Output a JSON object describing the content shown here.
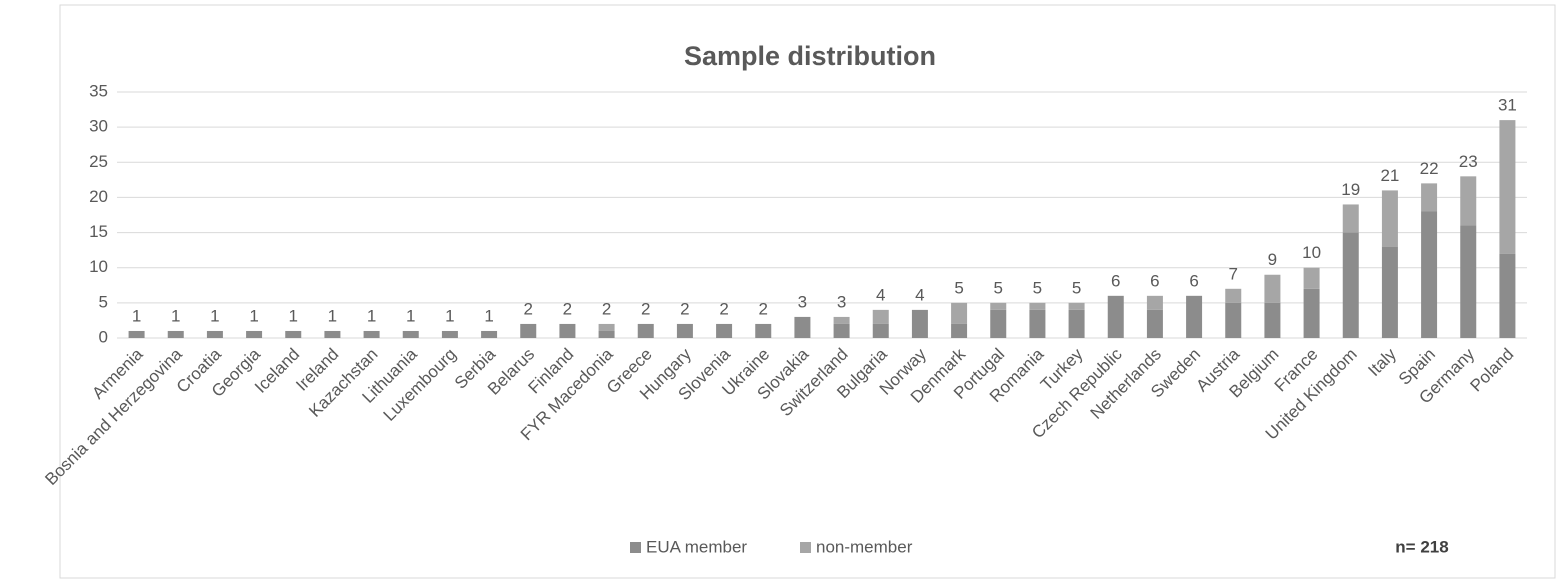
{
  "chart_data": {
    "type": "stacked_bar",
    "title": "Sample distribution",
    "annotation": "n= 218",
    "categories": [
      "Armenia",
      "Bosnia and Herzegovina",
      "Croatia",
      "Georgia",
      "Iceland",
      "Ireland",
      "Kazachstan",
      "Lithuania",
      "Luxembourg",
      "Serbia",
      "Belarus",
      "Finland",
      "FYR Macedonia",
      "Greece",
      "Hungary",
      "Slovenia",
      "Ukraine",
      "Slovakia",
      "Switzerland",
      "Bulgaria",
      "Norway",
      "Denmark",
      "Portugal",
      "Romania",
      "Turkey",
      "Czech Republic",
      "Netherlands",
      "Sweden",
      "Austria",
      "Belgium",
      "France",
      "United Kingdom",
      "Italy",
      "Spain",
      "Germany",
      "Poland"
    ],
    "series": [
      {
        "name": "EUA member",
        "color": "#8c8c8c",
        "values": [
          1,
          1,
          1,
          1,
          1,
          1,
          1,
          1,
          1,
          1,
          2,
          2,
          1,
          2,
          2,
          2,
          2,
          3,
          2,
          2,
          4,
          2,
          4,
          4,
          4,
          6,
          4,
          6,
          5,
          5,
          7,
          15,
          13,
          18,
          16,
          12
        ]
      },
      {
        "name": "non-member",
        "color": "#a6a6a6",
        "values": [
          0,
          0,
          0,
          0,
          0,
          0,
          0,
          0,
          0,
          0,
          0,
          0,
          1,
          0,
          0,
          0,
          0,
          0,
          1,
          2,
          0,
          3,
          1,
          1,
          1,
          0,
          2,
          0,
          2,
          4,
          3,
          4,
          8,
          4,
          7,
          19
        ]
      }
    ],
    "totals": [
      1,
      1,
      1,
      1,
      1,
      1,
      1,
      1,
      1,
      1,
      2,
      2,
      2,
      2,
      2,
      2,
      2,
      3,
      3,
      4,
      4,
      5,
      5,
      5,
      5,
      6,
      6,
      6,
      7,
      9,
      10,
      19,
      21,
      22,
      23,
      31
    ],
    "ylim": [
      0,
      35
    ],
    "yticks": [
      0,
      5,
      10,
      15,
      20,
      25,
      30,
      35
    ],
    "grid": true,
    "legend": "bottom"
  }
}
